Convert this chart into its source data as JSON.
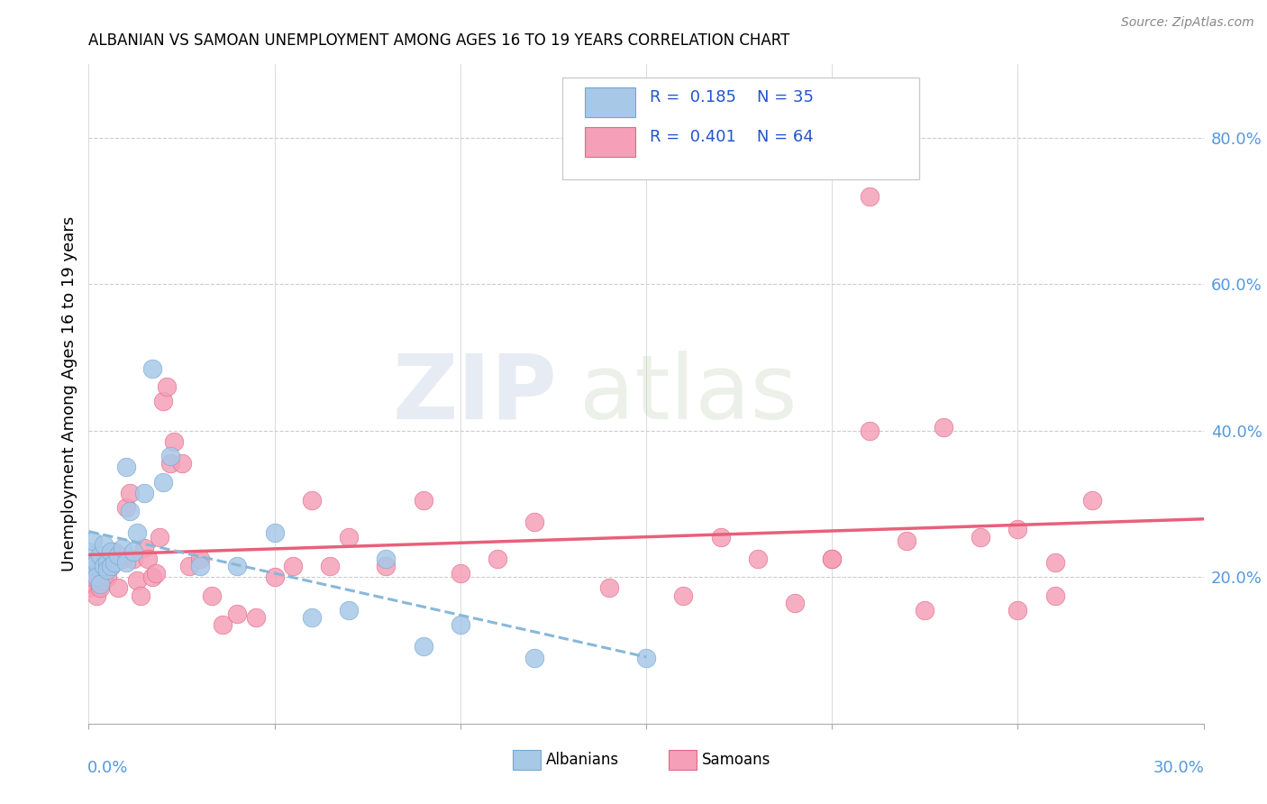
{
  "title": "ALBANIAN VS SAMOAN UNEMPLOYMENT AMONG AGES 16 TO 19 YEARS CORRELATION CHART",
  "source": "Source: ZipAtlas.com",
  "ylabel": "Unemployment Among Ages 16 to 19 years",
  "legend_albanians": "Albanians",
  "legend_samoans": "Samoans",
  "r_albanian": "0.185",
  "n_albanian": "35",
  "r_samoan": "0.401",
  "n_samoan": "64",
  "albanian_color": "#a8c8e8",
  "samoan_color": "#f5a0b8",
  "albanian_edge_color": "#70a8d0",
  "samoan_edge_color": "#e06888",
  "albanian_line_color": "#88b8d8",
  "samoan_line_color": "#e8607a",
  "right_ytick_vals": [
    0.2,
    0.4,
    0.6,
    0.8
  ],
  "right_ytick_labels": [
    "20.0%",
    "40.0%",
    "60.0%",
    "80.0%"
  ],
  "xmin": 0.0,
  "xmax": 0.3,
  "ymin": 0.0,
  "ymax": 0.9,
  "albanian_x": [
    0.0,
    0.001,
    0.001,
    0.002,
    0.002,
    0.003,
    0.003,
    0.004,
    0.004,
    0.005,
    0.005,
    0.006,
    0.006,
    0.007,
    0.008,
    0.009,
    0.01,
    0.01,
    0.011,
    0.012,
    0.013,
    0.015,
    0.017,
    0.02,
    0.022,
    0.03,
    0.04,
    0.05,
    0.06,
    0.07,
    0.08,
    0.09,
    0.1,
    0.12,
    0.15
  ],
  "albanian_y": [
    0.235,
    0.215,
    0.25,
    0.22,
    0.2,
    0.23,
    0.19,
    0.215,
    0.245,
    0.22,
    0.21,
    0.235,
    0.215,
    0.22,
    0.23,
    0.24,
    0.22,
    0.35,
    0.29,
    0.235,
    0.26,
    0.315,
    0.485,
    0.33,
    0.365,
    0.215,
    0.215,
    0.26,
    0.145,
    0.155,
    0.225,
    0.105,
    0.135,
    0.09,
    0.09
  ],
  "samoan_x": [
    0.0,
    0.001,
    0.001,
    0.002,
    0.002,
    0.003,
    0.003,
    0.004,
    0.004,
    0.005,
    0.005,
    0.006,
    0.007,
    0.008,
    0.009,
    0.01,
    0.011,
    0.012,
    0.013,
    0.014,
    0.015,
    0.016,
    0.017,
    0.018,
    0.019,
    0.02,
    0.021,
    0.022,
    0.023,
    0.025,
    0.027,
    0.03,
    0.033,
    0.036,
    0.04,
    0.045,
    0.05,
    0.055,
    0.06,
    0.065,
    0.07,
    0.08,
    0.09,
    0.1,
    0.11,
    0.12,
    0.14,
    0.16,
    0.17,
    0.18,
    0.19,
    0.2,
    0.21,
    0.22,
    0.225,
    0.24,
    0.25,
    0.26,
    0.27,
    0.2,
    0.21,
    0.23,
    0.25,
    0.26
  ],
  "samoan_y": [
    0.185,
    0.19,
    0.2,
    0.175,
    0.215,
    0.185,
    0.21,
    0.215,
    0.195,
    0.22,
    0.2,
    0.215,
    0.235,
    0.185,
    0.225,
    0.295,
    0.315,
    0.225,
    0.195,
    0.175,
    0.24,
    0.225,
    0.2,
    0.205,
    0.255,
    0.44,
    0.46,
    0.355,
    0.385,
    0.355,
    0.215,
    0.225,
    0.175,
    0.135,
    0.15,
    0.145,
    0.2,
    0.215,
    0.305,
    0.215,
    0.255,
    0.215,
    0.305,
    0.205,
    0.225,
    0.275,
    0.185,
    0.175,
    0.255,
    0.225,
    0.165,
    0.225,
    0.4,
    0.25,
    0.155,
    0.255,
    0.265,
    0.22,
    0.305,
    0.225,
    0.72,
    0.405,
    0.155,
    0.175
  ]
}
